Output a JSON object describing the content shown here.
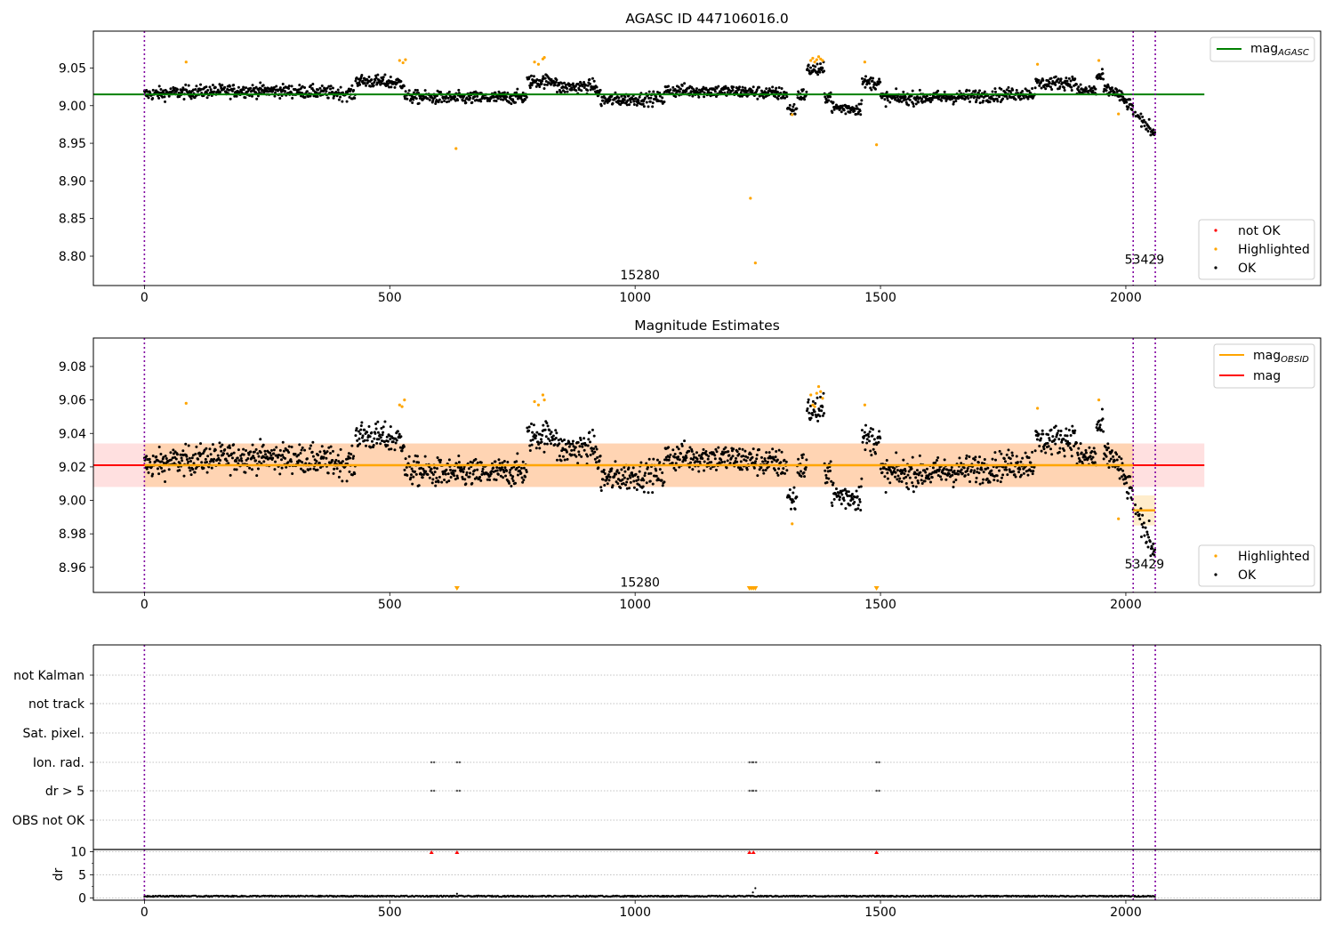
{
  "chart_data": [
    {
      "id": "agasc",
      "type": "scatter",
      "title": "AGASC ID 447106016.0",
      "xlim": [
        -104,
        2397
      ],
      "ylim": [
        8.761,
        9.099
      ],
      "xticks": [
        0,
        500,
        1000,
        1500,
        2000
      ],
      "yticks": [
        8.8,
        8.85,
        8.9,
        8.95,
        9.0,
        9.05
      ],
      "ytick_labels": [
        "8.80",
        "8.85",
        "8.90",
        "8.95",
        "9.00",
        "9.05"
      ],
      "vlines": [
        0,
        2015,
        2060
      ],
      "obs_labels": [
        {
          "x": 1010,
          "y": 8.775,
          "text": "15280"
        },
        {
          "x": 2038,
          "y": 8.796,
          "text": "53429"
        }
      ],
      "mag_agasc": {
        "value": 9.015,
        "x": [
          -104,
          2160
        ]
      },
      "series": [
        {
          "name": "not OK",
          "color": "#ff0000",
          "points": []
        },
        {
          "name": "Highlighted",
          "color": "#ffa500",
          "points": [
            [
              85,
              9.058
            ],
            [
              520,
              9.06
            ],
            [
              527,
              9.057
            ],
            [
              532,
              9.061
            ],
            [
              635,
              8.943
            ],
            [
              795,
              9.058
            ],
            [
              803,
              9.055
            ],
            [
              812,
              9.062
            ],
            [
              815,
              9.064
            ],
            [
              1235,
              8.877
            ],
            [
              1245,
              8.791
            ],
            [
              1320,
              8.988
            ],
            [
              1358,
              9.06
            ],
            [
              1362,
              9.063
            ],
            [
              1366,
              9.058
            ],
            [
              1370,
              9.061
            ],
            [
              1374,
              9.065
            ],
            [
              1378,
              9.062
            ],
            [
              1382,
              9.06
            ],
            [
              1468,
              9.058
            ],
            [
              1492,
              8.948
            ],
            [
              1820,
              9.055
            ],
            [
              1945,
              9.06
            ],
            [
              1985,
              8.989
            ]
          ]
        },
        {
          "name": "OK",
          "color": "#000000",
          "points": "generated"
        }
      ],
      "legend": {
        "loc": "lower right",
        "entries": [
          "not OK",
          "Highlighted",
          "OK"
        ]
      },
      "legend2": {
        "loc": "upper right",
        "label": "mag",
        "sub": "AGASC"
      }
    },
    {
      "id": "magest",
      "type": "scatter",
      "title": "Magnitude Estimates",
      "xlim": [
        -104,
        2397
      ],
      "ylim": [
        8.945,
        9.097
      ],
      "xticks": [
        0,
        500,
        1000,
        1500,
        2000
      ],
      "yticks": [
        8.96,
        8.98,
        9.0,
        9.02,
        9.04,
        9.06,
        9.08
      ],
      "ytick_labels": [
        "8.96",
        "8.98",
        "9.00",
        "9.02",
        "9.04",
        "9.06",
        "9.08"
      ],
      "vlines": [
        0,
        2015,
        2060
      ],
      "obs_labels": [
        {
          "x": 1010,
          "y": 8.951,
          "text": "15280"
        },
        {
          "x": 2038,
          "y": 8.962,
          "text": "53429"
        }
      ],
      "mag": {
        "value": 9.021,
        "band": [
          9.008,
          9.034
        ],
        "x": [
          -104,
          2160
        ]
      },
      "mag_obsid": [
        {
          "x": [
            0,
            2015
          ],
          "value": 9.021,
          "band": [
            9.008,
            9.034
          ]
        },
        {
          "x": [
            2015,
            2060
          ],
          "value": 8.994,
          "band": [
            8.985,
            9.003
          ]
        }
      ],
      "clipped_markers": [
        637,
        1233,
        1237,
        1241,
        1245,
        1492
      ],
      "series": [
        {
          "name": "Highlighted",
          "color": "#ffa500",
          "points": [
            [
              85,
              9.058
            ],
            [
              520,
              9.057
            ],
            [
              525,
              9.056
            ],
            [
              530,
              9.06
            ],
            [
              795,
              9.059
            ],
            [
              803,
              9.057
            ],
            [
              812,
              9.063
            ],
            [
              815,
              9.06
            ],
            [
              1320,
              8.986
            ],
            [
              1358,
              9.063
            ],
            [
              1362,
              9.057
            ],
            [
              1366,
              9.056
            ],
            [
              1370,
              9.064
            ],
            [
              1374,
              9.068
            ],
            [
              1378,
              9.065
            ],
            [
              1382,
              9.061
            ],
            [
              1468,
              9.057
            ],
            [
              1820,
              9.055
            ],
            [
              1945,
              9.06
            ],
            [
              1985,
              8.989
            ]
          ]
        },
        {
          "name": "OK",
          "color": "#000000",
          "points": "generated"
        }
      ],
      "legend": {
        "loc": "lower right",
        "entries": [
          "Highlighted",
          "OK"
        ]
      },
      "legend2": {
        "loc": "upper right",
        "entries": [
          {
            "label": "mag",
            "sub": "OBSID",
            "color": "#ffa500"
          },
          {
            "label": "mag",
            "sub": "",
            "color": "#ff0000"
          }
        ]
      }
    },
    {
      "id": "flags",
      "type": "scatter",
      "xlim": [
        -104,
        2397
      ],
      "categories": [
        "not Kalman",
        "not track",
        "Sat. pixel.",
        "Ion. rad.",
        "dr > 5",
        "OBS not OK"
      ],
      "vlines": [
        0,
        2015,
        2060
      ],
      "flag_points": {
        "Ion. rad.": [
          585,
          637,
          1233,
          1241,
          1492
        ],
        "dr > 5": [
          585,
          637,
          1233,
          1241,
          1492
        ]
      }
    },
    {
      "id": "dr",
      "type": "scatter",
      "xlim": [
        -104,
        2397
      ],
      "ylim": [
        -0.5,
        10.5
      ],
      "ylabel": "dr",
      "xticks": [
        0,
        500,
        1000,
        1500,
        2000
      ],
      "yticks": [
        0,
        5,
        10
      ],
      "ytick_labels": [
        "0",
        "5",
        "10"
      ],
      "vlines": [
        0,
        2015,
        2060
      ],
      "clipped_markers": [
        585,
        637,
        1233,
        1241,
        1492
      ],
      "outliers": [
        [
          637,
          0.9
        ],
        [
          1245,
          2.1
        ],
        [
          1240,
          1.2
        ]
      ]
    }
  ],
  "xtick_labels": [
    "0",
    "500",
    "1000",
    "1500",
    "2000"
  ]
}
